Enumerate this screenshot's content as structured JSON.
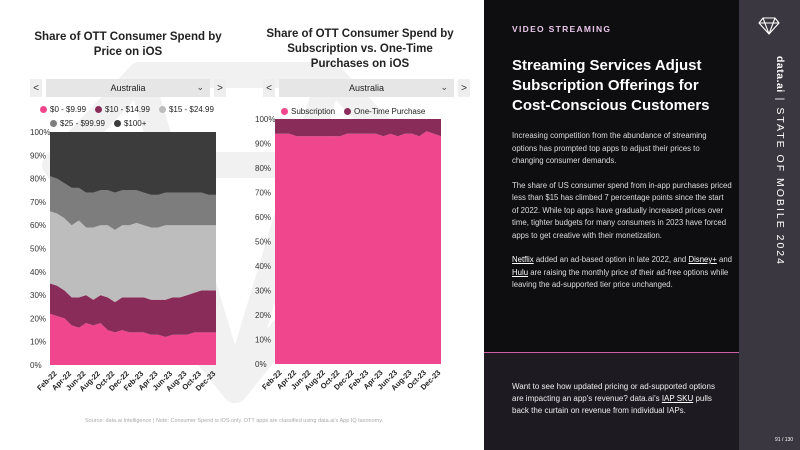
{
  "left": {
    "chart1": {
      "title": "Share of OTT Consumer Spend by Price on iOS",
      "dropdown_value": "Australia",
      "nav_prev": "<",
      "nav_next": ">"
    },
    "chart2": {
      "title": "Share of OTT Consumer Spend by Subscription vs. One-Time Purchases on iOS",
      "dropdown_value": "Australia",
      "nav_prev": "<",
      "nav_next": ">"
    },
    "source": "Source: data.ai Intelligence | Note: Consumer Spend is iOS only. OTT apps are classified using data.ai's App IQ taxonomy."
  },
  "chart_data": [
    {
      "type": "area",
      "title": "Share of OTT Consumer Spend by Price on iOS",
      "stacked": true,
      "ylim": [
        0,
        100
      ],
      "yticks": [
        "0%",
        "10%",
        "20%",
        "30%",
        "40%",
        "50%",
        "60%",
        "70%",
        "80%",
        "90%",
        "100%"
      ],
      "xticks": [
        "Feb-22",
        "Apr-22",
        "Jun-22",
        "Aug-22",
        "Oct-22",
        "Dec-22",
        "Feb-23",
        "Apr-23",
        "Jun-23",
        "Aug-23",
        "Oct-23",
        "Dec-23"
      ],
      "x": [
        "Jan-22",
        "Feb-22",
        "Mar-22",
        "Apr-22",
        "May-22",
        "Jun-22",
        "Jul-22",
        "Aug-22",
        "Sep-22",
        "Oct-22",
        "Nov-22",
        "Dec-22",
        "Jan-23",
        "Feb-23",
        "Mar-23",
        "Apr-23",
        "May-23",
        "Jun-23",
        "Jul-23",
        "Aug-23",
        "Sep-23",
        "Oct-23",
        "Nov-23",
        "Dec-23"
      ],
      "legend_position": "top",
      "series": [
        {
          "name": "$0 - $9.99",
          "color": "#f0468e",
          "values": [
            22,
            21,
            20,
            17,
            16,
            18,
            17,
            18,
            15,
            14,
            15,
            14,
            14,
            14,
            13,
            13,
            12,
            13,
            13,
            13,
            14,
            14,
            14,
            14
          ]
        },
        {
          "name": "$10 - $14.99",
          "color": "#8a2c5a",
          "values": [
            13,
            13,
            12,
            12,
            13,
            12,
            11,
            12,
            14,
            13,
            14,
            15,
            15,
            15,
            15,
            15,
            16,
            16,
            16,
            17,
            17,
            18,
            18,
            18
          ]
        },
        {
          "name": "$15 - $24.99",
          "color": "#bdbdbd",
          "values": [
            31,
            31,
            31,
            31,
            33,
            29,
            31,
            30,
            31,
            31,
            31,
            31,
            32,
            31,
            31,
            31,
            32,
            31,
            31,
            30,
            29,
            28,
            28,
            28
          ]
        },
        {
          "name": "$25 - $99.99",
          "color": "#7d7d7d",
          "values": [
            15,
            15,
            15,
            16,
            14,
            15,
            15,
            15,
            15,
            16,
            15,
            15,
            14,
            14,
            14,
            14,
            14,
            14,
            14,
            14,
            14,
            14,
            13,
            13
          ]
        },
        {
          "name": "$100+",
          "color": "#3c3c3c",
          "values": [
            19,
            20,
            22,
            24,
            24,
            26,
            26,
            25,
            25,
            26,
            25,
            25,
            25,
            26,
            27,
            27,
            26,
            26,
            26,
            26,
            26,
            26,
            27,
            27
          ]
        }
      ]
    },
    {
      "type": "area",
      "title": "Share of OTT Consumer Spend by Subscription vs. One-Time Purchases on iOS",
      "stacked": true,
      "ylim": [
        0,
        100
      ],
      "yticks": [
        "0%",
        "10%",
        "20%",
        "30%",
        "40%",
        "50%",
        "60%",
        "70%",
        "80%",
        "90%",
        "100%"
      ],
      "xticks": [
        "Feb-22",
        "Apr-22",
        "Jun-22",
        "Aug-22",
        "Oct-22",
        "Dec-22",
        "Feb-23",
        "Apr-23",
        "Jun-23",
        "Aug-23",
        "Oct-23",
        "Dec-23"
      ],
      "x": [
        "Jan-22",
        "Feb-22",
        "Mar-22",
        "Apr-22",
        "May-22",
        "Jun-22",
        "Jul-22",
        "Aug-22",
        "Sep-22",
        "Oct-22",
        "Nov-22",
        "Dec-22",
        "Jan-23",
        "Feb-23",
        "Mar-23",
        "Apr-23",
        "May-23",
        "Jun-23",
        "Jul-23",
        "Aug-23",
        "Sep-23",
        "Oct-23",
        "Nov-23",
        "Dec-23"
      ],
      "legend_position": "top",
      "series": [
        {
          "name": "Subscription",
          "color": "#f0468e",
          "values": [
            94,
            94,
            94,
            93,
            93,
            93,
            93,
            93,
            93,
            93,
            94,
            94,
            94,
            94,
            94,
            93,
            94,
            93,
            94,
            94,
            93,
            95,
            94,
            93
          ]
        },
        {
          "name": "One-Time Purchase",
          "color": "#8a2c5a",
          "values": [
            6,
            6,
            6,
            7,
            7,
            7,
            7,
            7,
            7,
            7,
            6,
            6,
            6,
            6,
            6,
            7,
            6,
            7,
            6,
            6,
            7,
            5,
            6,
            7
          ]
        }
      ]
    }
  ],
  "panel": {
    "section_label": "VIDEO STREAMING",
    "headline": "Streaming Services Adjust Subscription Offerings for Cost-Conscious Customers",
    "para1": "Increasing competition from the abundance of streaming options has prompted top apps to adjust their prices to changing consumer demands.",
    "para2": "The share of US consumer spend from in-app purchases priced less than $15 has climbed 7 percentage points since the start of 2022. While top apps have gradually increased prices over time, tighter budgets for many consumers in 2023 have forced apps to get creative with their monetization.",
    "para3_link1": "Netflix",
    "para3_a": " added an ad-based option in late 2022, and ",
    "para3_link2": "Disney+",
    "para3_b": " and ",
    "para3_link3": "Hulu",
    "para3_c": " are raising the monthly price of their ad-free options while leaving the ad-supported tier price unchanged.",
    "cta_a": "Want to see how updated pricing or ad-supported options are impacting an app's revenue? data.ai's ",
    "cta_link": "IAP SKU",
    "cta_b": " pulls back the curtain on revenue from individual IAPs."
  },
  "sidebar": {
    "brand": "data.ai",
    "separator": " | ",
    "report": "STATE OF MOBILE 2024",
    "page": "91 / 130",
    "logo_icon": "diamond-logo-icon"
  }
}
